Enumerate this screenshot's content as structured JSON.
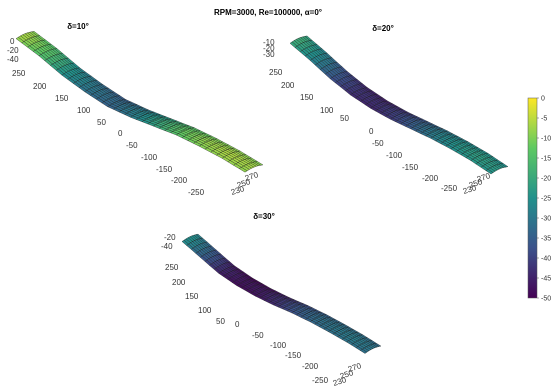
{
  "figure": {
    "title": "RPM=3000, Re=100000, α=0°"
  },
  "colors": {
    "viridis": [
      "#440154",
      "#3b528b",
      "#21918c",
      "#5ec962",
      "#fde725"
    ],
    "mesh_line": "#1a1a1a",
    "grid": "#d9d9d9",
    "text": "#333333"
  },
  "colorbar": {
    "ticks": [
      "0",
      "-5",
      "-10",
      "-15",
      "-20",
      "-25",
      "-30",
      "-35",
      "-40",
      "-45",
      "-50"
    ],
    "min": -50,
    "max": 0
  },
  "chart_data": [
    {
      "type": "surface",
      "title": "δ=10°",
      "z_ticks": [
        "0",
        "-20",
        "-40"
      ],
      "y_ticks": [
        "250",
        "200",
        "150",
        "100",
        "50",
        "0",
        "-50",
        "-100",
        "-150",
        "-200",
        "-250"
      ],
      "x_ticks": [
        "230",
        "250",
        "270"
      ],
      "zlim": [
        -50,
        0
      ],
      "value_range": [
        -35,
        -5
      ],
      "profile_z": [
        -8,
        -15,
        -26,
        -32,
        -35,
        -30,
        -22,
        -14,
        -10,
        -8,
        -9
      ]
    },
    {
      "type": "surface",
      "title": "δ=20°",
      "z_ticks": [
        "-10",
        "-20",
        "-30"
      ],
      "y_ticks": [
        "250",
        "200",
        "150",
        "100",
        "50",
        "0",
        "-50",
        "-100",
        "-150",
        "-200",
        "-250"
      ],
      "x_ticks": [
        "230",
        "250",
        "270"
      ],
      "zlim": [
        -50,
        0
      ],
      "value_range": [
        -45,
        -15
      ],
      "profile_z": [
        -20,
        -28,
        -38,
        -44,
        -45,
        -42,
        -36,
        -30,
        -26,
        -24,
        -25
      ]
    },
    {
      "type": "surface",
      "title": "δ=30°",
      "z_ticks": [
        "-20",
        "-40"
      ],
      "y_ticks": [
        "250",
        "200",
        "150",
        "100",
        "50",
        "0",
        "-50",
        "-100",
        "-150",
        "-200",
        "-250"
      ],
      "x_ticks": [
        "230",
        "250",
        "270"
      ],
      "zlim": [
        -50,
        0
      ],
      "value_range": [
        -50,
        -20
      ],
      "profile_z": [
        -26,
        -36,
        -46,
        -49,
        -48,
        -44,
        -38,
        -34,
        -32,
        -31,
        -32
      ]
    }
  ]
}
